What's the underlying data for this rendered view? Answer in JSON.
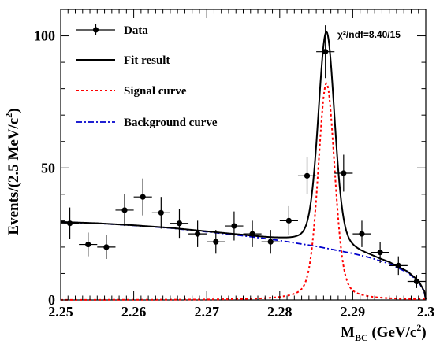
{
  "chart_data": {
    "type": "scatter",
    "xlabel_main": "M",
    "xlabel_sub": "BC",
    "xlabel_unit": " (GeV/c",
    "xlabel_sup": "2",
    "xlabel_close": ")",
    "ylabel_main": "Events/(2.5 MeV/c",
    "ylabel_sup": "2",
    "ylabel_close": ")",
    "xlim": [
      2.25,
      2.3
    ],
    "ylim": [
      0,
      110
    ],
    "x_ticks": [
      {
        "v": 2.25,
        "label": "2.25"
      },
      {
        "v": 2.26,
        "label": "2.26"
      },
      {
        "v": 2.27,
        "label": "2.27"
      },
      {
        "v": 2.28,
        "label": "2.28"
      },
      {
        "v": 2.29,
        "label": "2.29"
      },
      {
        "v": 2.3,
        "label": "2.3"
      }
    ],
    "y_ticks": [
      {
        "v": 0,
        "label": "0"
      },
      {
        "v": 50,
        "label": "50"
      },
      {
        "v": 100,
        "label": "100"
      }
    ],
    "legend": [
      {
        "key": "data",
        "label": "Data"
      },
      {
        "key": "fit",
        "label": "Fit result"
      },
      {
        "key": "signal",
        "label": "Signal curve"
      },
      {
        "key": "background",
        "label": "Background curve"
      }
    ],
    "annotation": "χ²/ndf=8.40/15",
    "colors": {
      "data": "#000000",
      "fit": "#000000",
      "signal": "#ff0000",
      "background": "#0000cc"
    },
    "bin_half_width": 0.00125,
    "data_points": [
      {
        "x": 2.25125,
        "y": 29,
        "err": 6
      },
      {
        "x": 2.25375,
        "y": 21,
        "err": 4.5
      },
      {
        "x": 2.25625,
        "y": 20,
        "err": 4.5
      },
      {
        "x": 2.25875,
        "y": 34,
        "err": 6
      },
      {
        "x": 2.26125,
        "y": 39,
        "err": 7
      },
      {
        "x": 2.26375,
        "y": 33,
        "err": 6
      },
      {
        "x": 2.26625,
        "y": 29,
        "err": 5.5
      },
      {
        "x": 2.26875,
        "y": 25,
        "err": 5
      },
      {
        "x": 2.27125,
        "y": 22,
        "err": 4.5
      },
      {
        "x": 2.27375,
        "y": 28,
        "err": 5.5
      },
      {
        "x": 2.27625,
        "y": 25,
        "err": 5
      },
      {
        "x": 2.27875,
        "y": 22,
        "err": 4.5
      },
      {
        "x": 2.28125,
        "y": 30,
        "err": 5.5
      },
      {
        "x": 2.28375,
        "y": 47,
        "err": 7
      },
      {
        "x": 2.28625,
        "y": 94,
        "err": 10
      },
      {
        "x": 2.28875,
        "y": 48,
        "err": 7
      },
      {
        "x": 2.29125,
        "y": 25,
        "err": 5
      },
      {
        "x": 2.29375,
        "y": 18,
        "err": 4
      },
      {
        "x": 2.29625,
        "y": 13,
        "err": 3.5
      },
      {
        "x": 2.29875,
        "y": 7,
        "err": 2.5
      }
    ],
    "background_curve": [
      {
        "x": 2.25,
        "y": 29.5
      },
      {
        "x": 2.255,
        "y": 29.0
      },
      {
        "x": 2.26,
        "y": 28.2
      },
      {
        "x": 2.265,
        "y": 27.2
      },
      {
        "x": 2.27,
        "y": 25.8
      },
      {
        "x": 2.275,
        "y": 24.3
      },
      {
        "x": 2.28,
        "y": 22.5
      },
      {
        "x": 2.285,
        "y": 20.3
      },
      {
        "x": 2.29,
        "y": 17.6
      },
      {
        "x": 2.2925,
        "y": 15.9
      },
      {
        "x": 2.295,
        "y": 13.7
      },
      {
        "x": 2.2975,
        "y": 10.4
      },
      {
        "x": 2.299,
        "y": 7.0
      },
      {
        "x": 2.2998,
        "y": 3.0
      },
      {
        "x": 2.3,
        "y": 0
      }
    ],
    "signal_peak": {
      "mean": 2.2864,
      "height": 82,
      "sigma": 0.0011
    }
  }
}
